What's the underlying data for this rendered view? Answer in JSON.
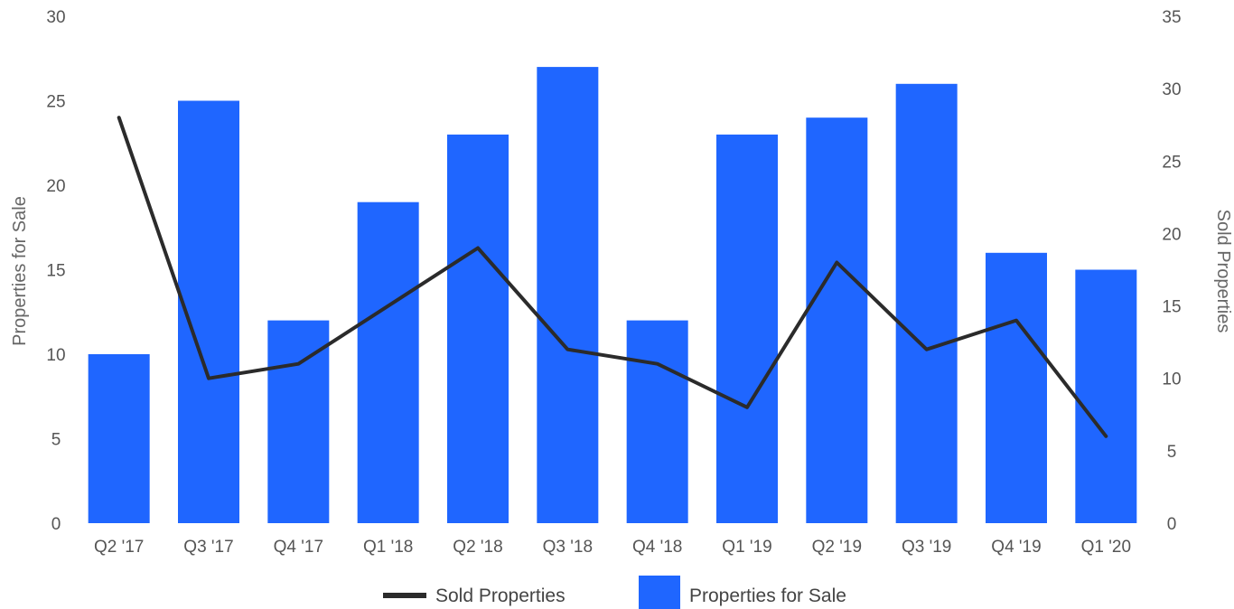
{
  "chart_data": {
    "type": "bar",
    "categories": [
      "Q2 '17",
      "Q3 '17",
      "Q4 '17",
      "Q1 '18",
      "Q2 '18",
      "Q3 '18",
      "Q4 '18",
      "Q1 '19",
      "Q2 '19",
      "Q3 '19",
      "Q4 '19",
      "Q1 '20"
    ],
    "series": [
      {
        "name": "Properties for Sale",
        "type": "bar",
        "axis": "left",
        "color": "#1f66ff",
        "values": [
          10,
          25,
          12,
          19,
          23,
          27,
          12,
          23,
          24,
          26,
          16,
          15
        ]
      },
      {
        "name": "Sold Properties",
        "type": "line",
        "axis": "right",
        "color": "#2b2b2b",
        "values": [
          28,
          10,
          11,
          15,
          19,
          12,
          11,
          8,
          18,
          12,
          14,
          6
        ]
      }
    ],
    "y_left": {
      "label": "Properties for Sale",
      "min": 0,
      "max": 30,
      "ticks": [
        "0",
        "5",
        "10",
        "15",
        "20",
        "25",
        "30"
      ]
    },
    "y_right": {
      "label": "Sold Properties",
      "min": 0,
      "max": 35,
      "ticks": [
        "0",
        "5",
        "10",
        "15",
        "20",
        "25",
        "30",
        "35"
      ]
    },
    "legend": {
      "position": "bottom",
      "items": [
        "Sold Properties",
        "Properties for Sale"
      ]
    },
    "grid": false
  }
}
